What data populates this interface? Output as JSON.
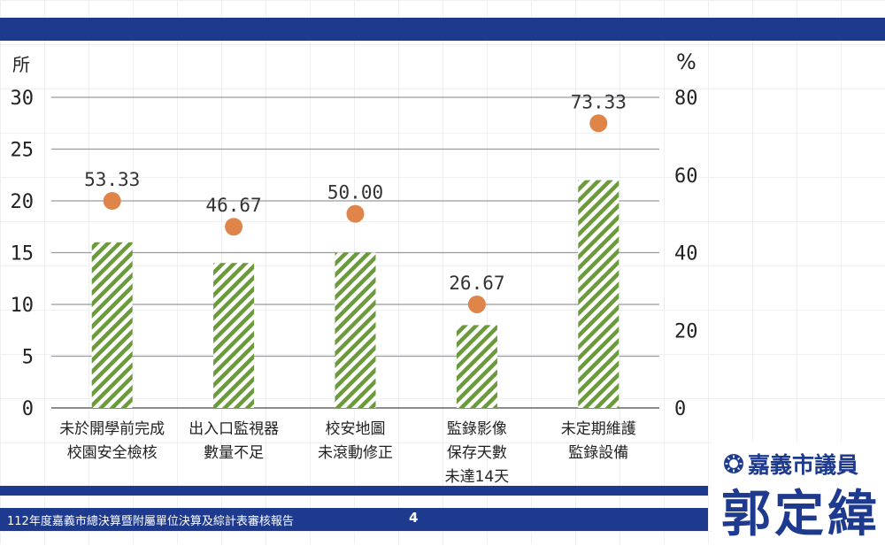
{
  "chart_data": {
    "type": "bar",
    "left_axis_unit": "所",
    "right_axis_unit": "%",
    "ylim_left": [
      0,
      30
    ],
    "ylim_right": [
      0,
      80
    ],
    "left_ticks": [
      "0",
      "5",
      "10",
      "15",
      "20",
      "25",
      "30"
    ],
    "right_ticks": [
      "0",
      "20",
      "40",
      "60",
      "80"
    ],
    "grid": true,
    "categories": [
      [
        "未於開學前完成",
        "校園安全檢核"
      ],
      [
        "出入口監視器",
        "數量不足"
      ],
      [
        "校安地圖",
        "未滾動修正"
      ],
      [
        "監錄影像",
        "保存天數",
        "未達14天"
      ],
      [
        "未定期維護",
        "監錄設備"
      ]
    ],
    "bar_values": [
      16,
      14,
      15,
      8,
      22
    ],
    "pct_values": [
      53.33,
      46.67,
      50.0,
      26.67,
      73.33
    ],
    "pct_labels": [
      "53.33",
      "46.67",
      "50.00",
      "26.67",
      "73.33"
    ],
    "bar_color": "#6a9a3a",
    "dot_color": "#e0854a"
  },
  "footer": {
    "report_title": "112年度嘉義市總決算暨附屬單位決算及綜計表審核報告",
    "page_number": "4"
  },
  "badge": {
    "title": "嘉義市議員",
    "name": "郭定緯"
  },
  "colors": {
    "navy": "#1e3a8f"
  }
}
